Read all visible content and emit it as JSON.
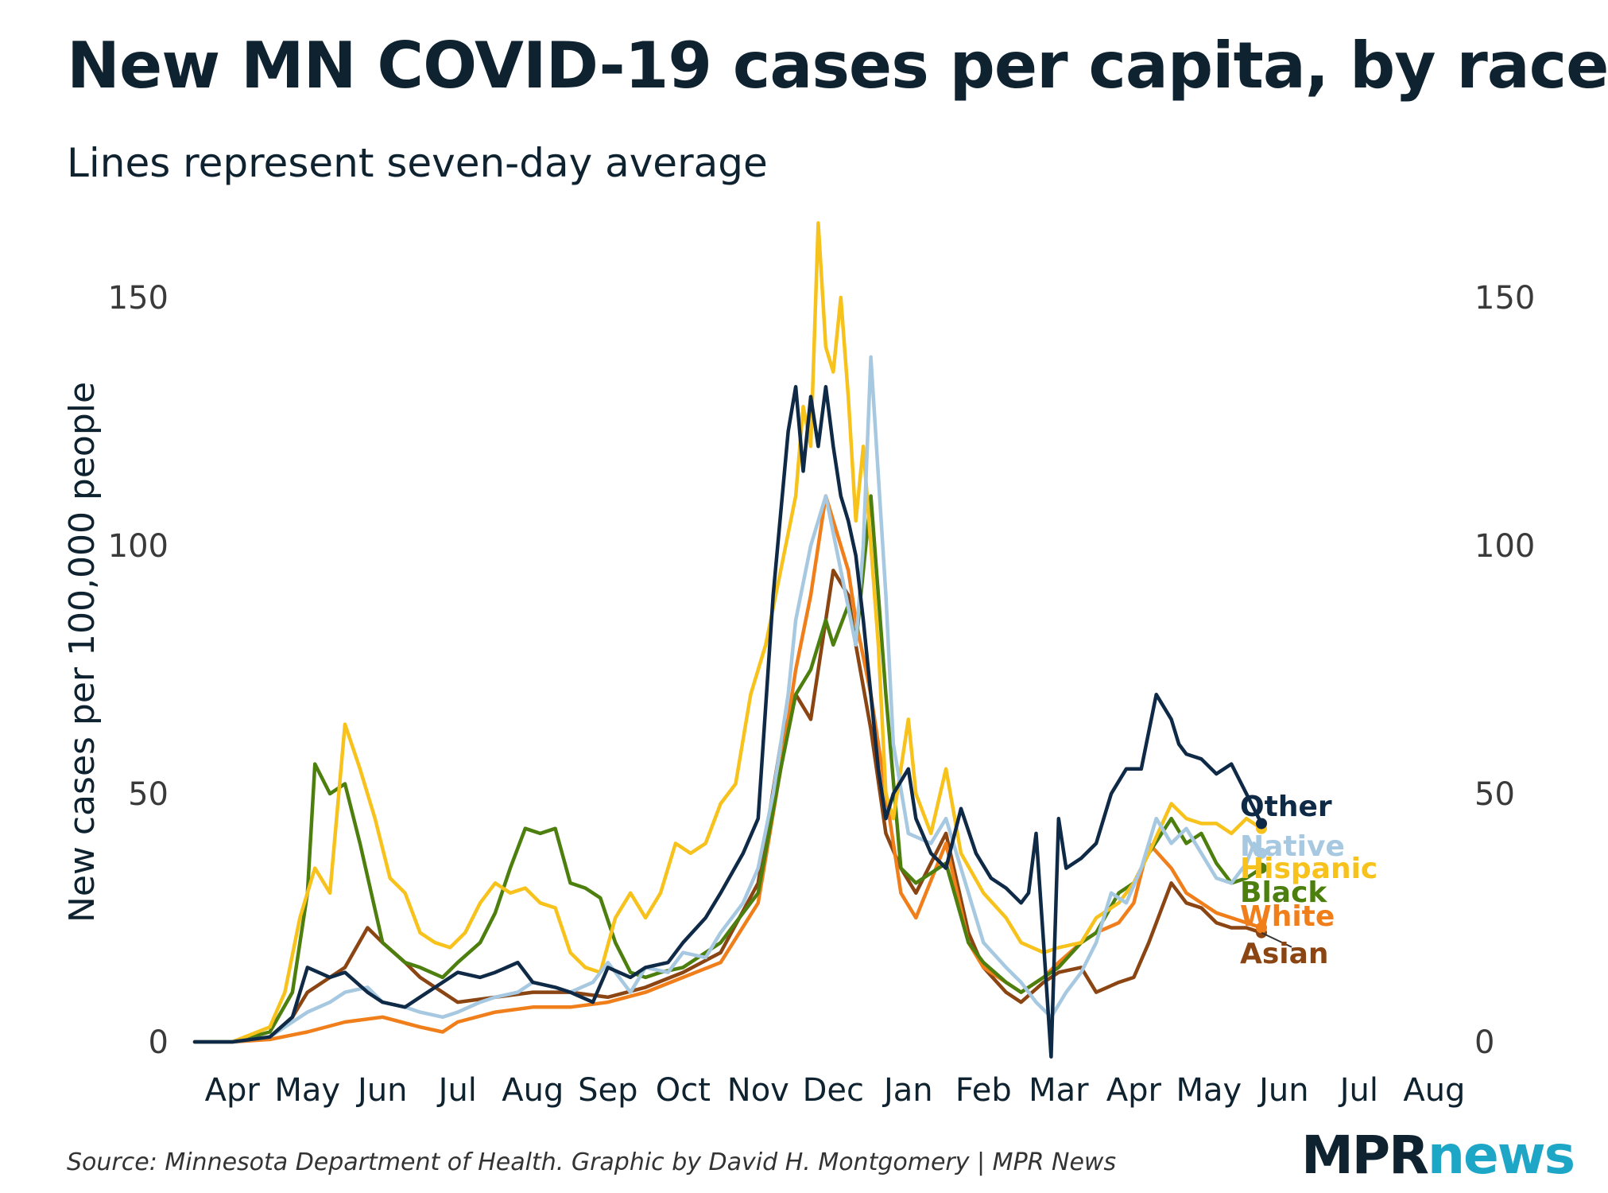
{
  "title": "New MN COVID-19 cases per capita, by race",
  "subtitle": "Lines represent seven-day average",
  "source": "Source: Minnesota Department of Health. Graphic by David H. Montgomery | MPR News",
  "logo": {
    "mpr": "MPR",
    "news": "news"
  },
  "chart_data": {
    "type": "line",
    "title": "New MN COVID-19 cases per capita, by race",
    "subtitle": "Lines represent seven-day average",
    "xlabel": "",
    "ylabel": "New cases per 100,000 people",
    "ylim": [
      0,
      150
    ],
    "xlim": [
      0,
      17.3
    ],
    "yticks": [
      0,
      50,
      100,
      150
    ],
    "xtick_positions": [
      0.5,
      1.5,
      2.5,
      3.5,
      4.5,
      5.5,
      6.5,
      7.5,
      8.5,
      9.5,
      10.5,
      11.5,
      12.5,
      13.5,
      14.5,
      15.5,
      16.5
    ],
    "xtick_labels": [
      "Apr",
      "May",
      "Jun",
      "Jul",
      "Aug",
      "Sep",
      "Oct",
      "Nov",
      "Dec",
      "Jan",
      "Feb",
      "Mar",
      "Apr",
      "May",
      "Jun",
      "Jul",
      "Aug"
    ],
    "grid": false,
    "x_note": "x in months since Mar 1, 2020 (tick labels centered in each month)",
    "series": [
      {
        "name": "Asian",
        "color": "#8b4513",
        "x": [
          0,
          0.5,
          1,
          1.3,
          1.5,
          1.7,
          2,
          2.3,
          2.5,
          2.8,
          3,
          3.3,
          3.5,
          4,
          4.5,
          5,
          5.5,
          6,
          6.5,
          7,
          7.5,
          7.8,
          8,
          8.2,
          8.4,
          8.5,
          8.7,
          8.8,
          9,
          9.2,
          9.4,
          9.6,
          10,
          10.3,
          10.5,
          10.8,
          11,
          11.3,
          11.5,
          11.8,
          12,
          12.3,
          12.5,
          12.7,
          13,
          13.2,
          13.4,
          13.6,
          13.8,
          14,
          14.2
        ],
        "y": [
          0,
          0,
          1,
          5,
          10,
          12,
          15,
          23,
          20,
          16,
          13,
          10,
          8,
          9,
          10,
          10,
          9,
          11,
          14,
          18,
          32,
          60,
          70,
          65,
          85,
          95,
          90,
          80,
          63,
          42,
          35,
          30,
          42,
          22,
          15,
          10,
          8,
          12,
          14,
          15,
          10,
          12,
          13,
          20,
          32,
          28,
          27,
          24,
          23,
          23,
          22
        ]
      },
      {
        "name": "White",
        "color": "#f07f1b",
        "x": [
          0,
          0.5,
          1,
          1.5,
          2,
          2.5,
          3,
          3.3,
          3.5,
          4,
          4.5,
          5,
          5.5,
          6,
          6.5,
          7,
          7.5,
          7.8,
          8,
          8.2,
          8.4,
          8.5,
          8.7,
          8.8,
          9,
          9.2,
          9.4,
          9.6,
          10,
          10.3,
          10.5,
          10.8,
          11,
          11.3,
          11.5,
          11.8,
          12,
          12.3,
          12.5,
          12.7,
          13,
          13.2,
          13.4,
          13.6,
          13.8,
          14,
          14.2
        ],
        "y": [
          0,
          0,
          0.5,
          2,
          4,
          5,
          3,
          2,
          4,
          6,
          7,
          7,
          8,
          10,
          13,
          16,
          28,
          55,
          75,
          90,
          110,
          105,
          95,
          85,
          70,
          50,
          30,
          25,
          40,
          20,
          15,
          12,
          10,
          13,
          16,
          20,
          22,
          24,
          28,
          40,
          35,
          30,
          28,
          26,
          25,
          24,
          23
        ]
      },
      {
        "name": "Black",
        "color": "#4d7f0f",
        "x": [
          0,
          0.5,
          1,
          1.3,
          1.5,
          1.6,
          1.8,
          2,
          2.2,
          2.5,
          2.8,
          3,
          3.3,
          3.5,
          3.8,
          4,
          4.2,
          4.4,
          4.6,
          4.8,
          5,
          5.2,
          5.4,
          5.6,
          5.8,
          6,
          6.2,
          6.5,
          7,
          7.5,
          7.8,
          8,
          8.2,
          8.4,
          8.5,
          8.7,
          8.8,
          9,
          9.2,
          9.4,
          9.6,
          10,
          10.3,
          10.5,
          10.8,
          11,
          11.3,
          11.5,
          11.8,
          12,
          12.3,
          12.5,
          12.7,
          13,
          13.2,
          13.4,
          13.6,
          13.8,
          14,
          14.2
        ],
        "y": [
          0,
          0,
          2,
          10,
          30,
          56,
          50,
          52,
          40,
          20,
          16,
          15,
          13,
          16,
          20,
          26,
          35,
          43,
          42,
          43,
          32,
          31,
          29,
          20,
          14,
          13,
          14,
          15,
          20,
          30,
          55,
          70,
          75,
          85,
          80,
          88,
          80,
          110,
          70,
          35,
          32,
          36,
          20,
          16,
          12,
          10,
          13,
          15,
          20,
          22,
          30,
          32,
          38,
          45,
          40,
          42,
          36,
          32,
          33,
          35
        ]
      },
      {
        "name": "Hispanic",
        "color": "#f6c21b",
        "x": [
          0,
          0.5,
          1,
          1.2,
          1.4,
          1.6,
          1.8,
          2,
          2.2,
          2.4,
          2.6,
          2.8,
          3,
          3.2,
          3.4,
          3.6,
          3.8,
          4,
          4.2,
          4.4,
          4.6,
          4.8,
          5,
          5.2,
          5.4,
          5.6,
          5.8,
          6,
          6.2,
          6.4,
          6.6,
          6.8,
          7,
          7.2,
          7.4,
          7.6,
          7.8,
          8,
          8.1,
          8.2,
          8.3,
          8.4,
          8.5,
          8.6,
          8.7,
          8.8,
          8.9,
          9,
          9.1,
          9.2,
          9.3,
          9.5,
          9.6,
          9.8,
          10,
          10.2,
          10.5,
          10.8,
          11,
          11.3,
          11.5,
          11.8,
          12,
          12.3,
          12.5,
          12.7,
          13,
          13.2,
          13.4,
          13.6,
          13.8,
          14,
          14.2
        ],
        "y": [
          0,
          0,
          3,
          10,
          25,
          35,
          30,
          64,
          55,
          45,
          33,
          30,
          22,
          20,
          19,
          22,
          28,
          32,
          30,
          31,
          28,
          27,
          18,
          15,
          14,
          25,
          30,
          25,
          30,
          40,
          38,
          40,
          48,
          52,
          70,
          80,
          95,
          110,
          128,
          120,
          165,
          140,
          135,
          150,
          130,
          105,
          120,
          100,
          80,
          50,
          45,
          65,
          50,
          42,
          55,
          38,
          30,
          25,
          20,
          18,
          19,
          20,
          25,
          28,
          32,
          38,
          48,
          45,
          44,
          44,
          42,
          45,
          43
        ]
      },
      {
        "name": "Native",
        "color": "#a6c8e0",
        "x": [
          0,
          0.5,
          1,
          1.3,
          1.5,
          1.8,
          2,
          2.3,
          2.5,
          2.8,
          3,
          3.3,
          3.5,
          3.8,
          4,
          4.3,
          4.5,
          4.8,
          5,
          5.3,
          5.5,
          5.8,
          6,
          6.3,
          6.5,
          6.8,
          7,
          7.3,
          7.5,
          7.7,
          7.9,
          8,
          8.2,
          8.4,
          8.6,
          8.8,
          8.9,
          9,
          9.2,
          9.3,
          9.5,
          9.8,
          10,
          10.3,
          10.5,
          10.8,
          11,
          11.2,
          11.4,
          11.6,
          11.8,
          12,
          12.2,
          12.4,
          12.6,
          12.8,
          13,
          13.2,
          13.4,
          13.6,
          13.8,
          14,
          14.1,
          14.2
        ],
        "y": [
          0,
          0,
          1,
          4,
          6,
          8,
          10,
          11,
          8,
          7,
          6,
          5,
          6,
          8,
          9,
          10,
          12,
          11,
          10,
          12,
          16,
          10,
          15,
          14,
          18,
          17,
          22,
          28,
          35,
          50,
          70,
          85,
          100,
          110,
          95,
          80,
          100,
          138,
          90,
          60,
          42,
          40,
          45,
          30,
          20,
          15,
          12,
          8,
          5,
          10,
          14,
          20,
          30,
          28,
          35,
          45,
          40,
          43,
          38,
          33,
          32,
          36,
          40,
          38
        ]
      },
      {
        "name": "Other",
        "color": "#0f2a47",
        "x": [
          0,
          0.5,
          1,
          1.3,
          1.5,
          1.8,
          2,
          2.3,
          2.5,
          2.8,
          3,
          3.3,
          3.5,
          3.8,
          4,
          4.3,
          4.5,
          4.8,
          5,
          5.3,
          5.5,
          5.8,
          6,
          6.3,
          6.5,
          6.8,
          7,
          7.3,
          7.5,
          7.7,
          7.9,
          8,
          8.1,
          8.2,
          8.3,
          8.4,
          8.5,
          8.6,
          8.7,
          8.8,
          8.9,
          9,
          9.1,
          9.2,
          9.3,
          9.5,
          9.6,
          9.8,
          10,
          10.2,
          10.4,
          10.6,
          10.8,
          11,
          11.1,
          11.2,
          11.3,
          11.4,
          11.5,
          11.6,
          11.8,
          12,
          12.2,
          12.4,
          12.6,
          12.8,
          13,
          13.1,
          13.2,
          13.4,
          13.6,
          13.8,
          14,
          14.2
        ],
        "y": [
          0,
          0,
          1,
          5,
          15,
          13,
          14,
          10,
          8,
          7,
          9,
          12,
          14,
          13,
          14,
          16,
          12,
          11,
          10,
          8,
          15,
          13,
          15,
          16,
          20,
          25,
          30,
          38,
          45,
          90,
          123,
          132,
          115,
          130,
          120,
          132,
          120,
          110,
          105,
          98,
          85,
          70,
          55,
          45,
          50,
          55,
          45,
          38,
          35,
          47,
          38,
          33,
          31,
          28,
          30,
          42,
          20,
          -3,
          45,
          35,
          37,
          40,
          50,
          55,
          55,
          70,
          65,
          60,
          58,
          57,
          54,
          56,
          50,
          44
        ]
      }
    ],
    "line_labels": [
      {
        "series": "Other",
        "text": "Other"
      },
      {
        "series": "Native",
        "text": "Native"
      },
      {
        "series": "Hispanic",
        "text": "Hispanic"
      },
      {
        "series": "Black",
        "text": "Black"
      },
      {
        "series": "White",
        "text": "White"
      },
      {
        "series": "Asian",
        "text": "Asian"
      }
    ]
  }
}
